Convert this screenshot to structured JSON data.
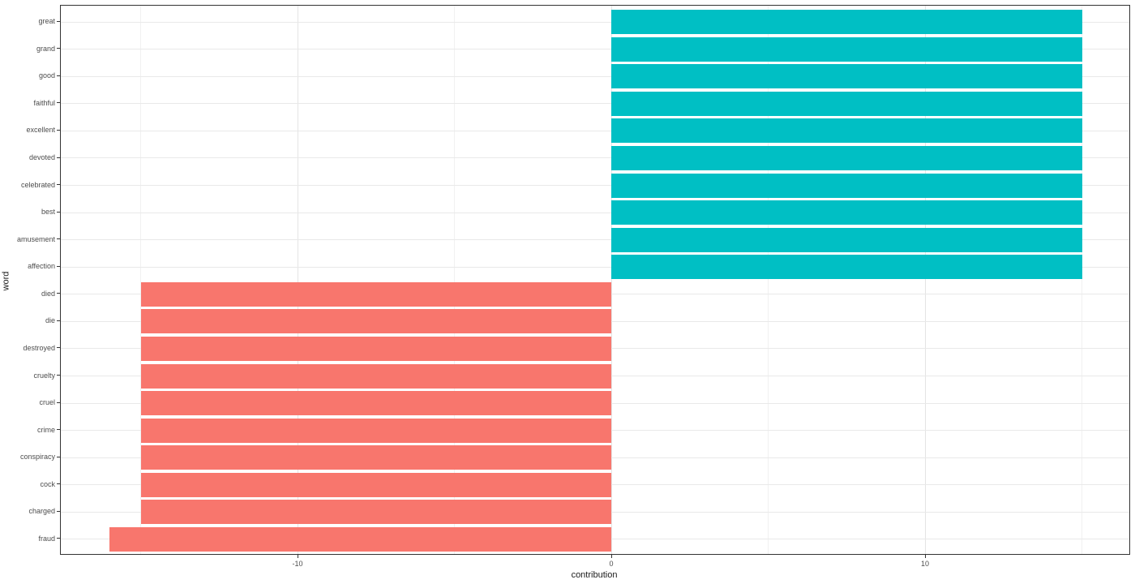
{
  "chart_data": {
    "type": "bar",
    "orientation": "horizontal",
    "title": "",
    "xlabel": "contribution",
    "ylabel": "word",
    "categories": [
      "great",
      "grand",
      "good",
      "faithful",
      "excellent",
      "devoted",
      "celebrated",
      "best",
      "amusement",
      "affection",
      "died",
      "die",
      "destroyed",
      "cruelty",
      "cruel",
      "crime",
      "conspiracy",
      "cock",
      "charged",
      "fraud"
    ],
    "values": [
      15,
      15,
      15,
      15,
      15,
      15,
      15,
      15,
      15,
      15,
      -15,
      -15,
      -15,
      -15,
      -15,
      -15,
      -15,
      -15,
      -15,
      -16
    ],
    "x_ticks": [
      -10,
      0,
      10
    ],
    "x_tick_labels": [
      "-10",
      "0",
      "10"
    ],
    "x_minor_ticks": [
      -15,
      -5,
      5,
      15
    ],
    "xlim": [
      -17.6,
      16.6
    ],
    "grid": "on",
    "legend": "none",
    "colors": {
      "positive": "#00BFC4",
      "negative": "#F8766D"
    }
  }
}
